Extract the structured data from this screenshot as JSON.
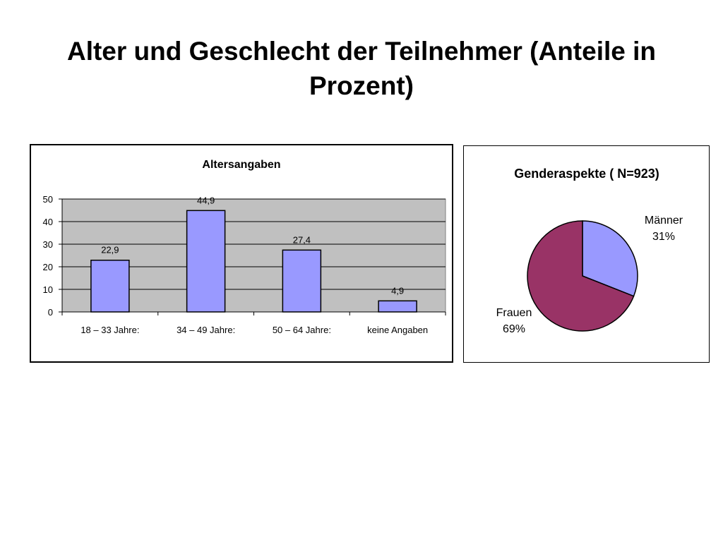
{
  "slide": {
    "title": "Alter und Geschlecht der Teilnehmer (Anteile in Prozent)"
  },
  "colors": {
    "bar_fill": "#9999FF",
    "plot_bg": "#C0C0C0",
    "pie_maenner": "#9999FF",
    "pie_frauen": "#993366"
  },
  "chart_data": [
    {
      "type": "bar",
      "title": "Altersangaben",
      "categories": [
        "18 – 33 Jahre:",
        "34 – 49 Jahre:",
        "50 – 64 Jahre:",
        "keine Angaben"
      ],
      "values": [
        22.9,
        44.9,
        27.4,
        4.9
      ],
      "value_labels": [
        "22,9",
        "44,9",
        "27,4",
        "4,9"
      ],
      "ylim": [
        0,
        50
      ],
      "yticks": [
        0,
        10,
        20,
        30,
        40,
        50
      ],
      "grid": true,
      "legend": "none"
    },
    {
      "type": "pie",
      "title": "Genderaspekte ( N=923)",
      "slices": [
        {
          "label": "Männer",
          "value": 31,
          "value_label": "31%"
        },
        {
          "label": "Frauen",
          "value": 69,
          "value_label": "69%"
        }
      ],
      "legend": "none"
    }
  ]
}
